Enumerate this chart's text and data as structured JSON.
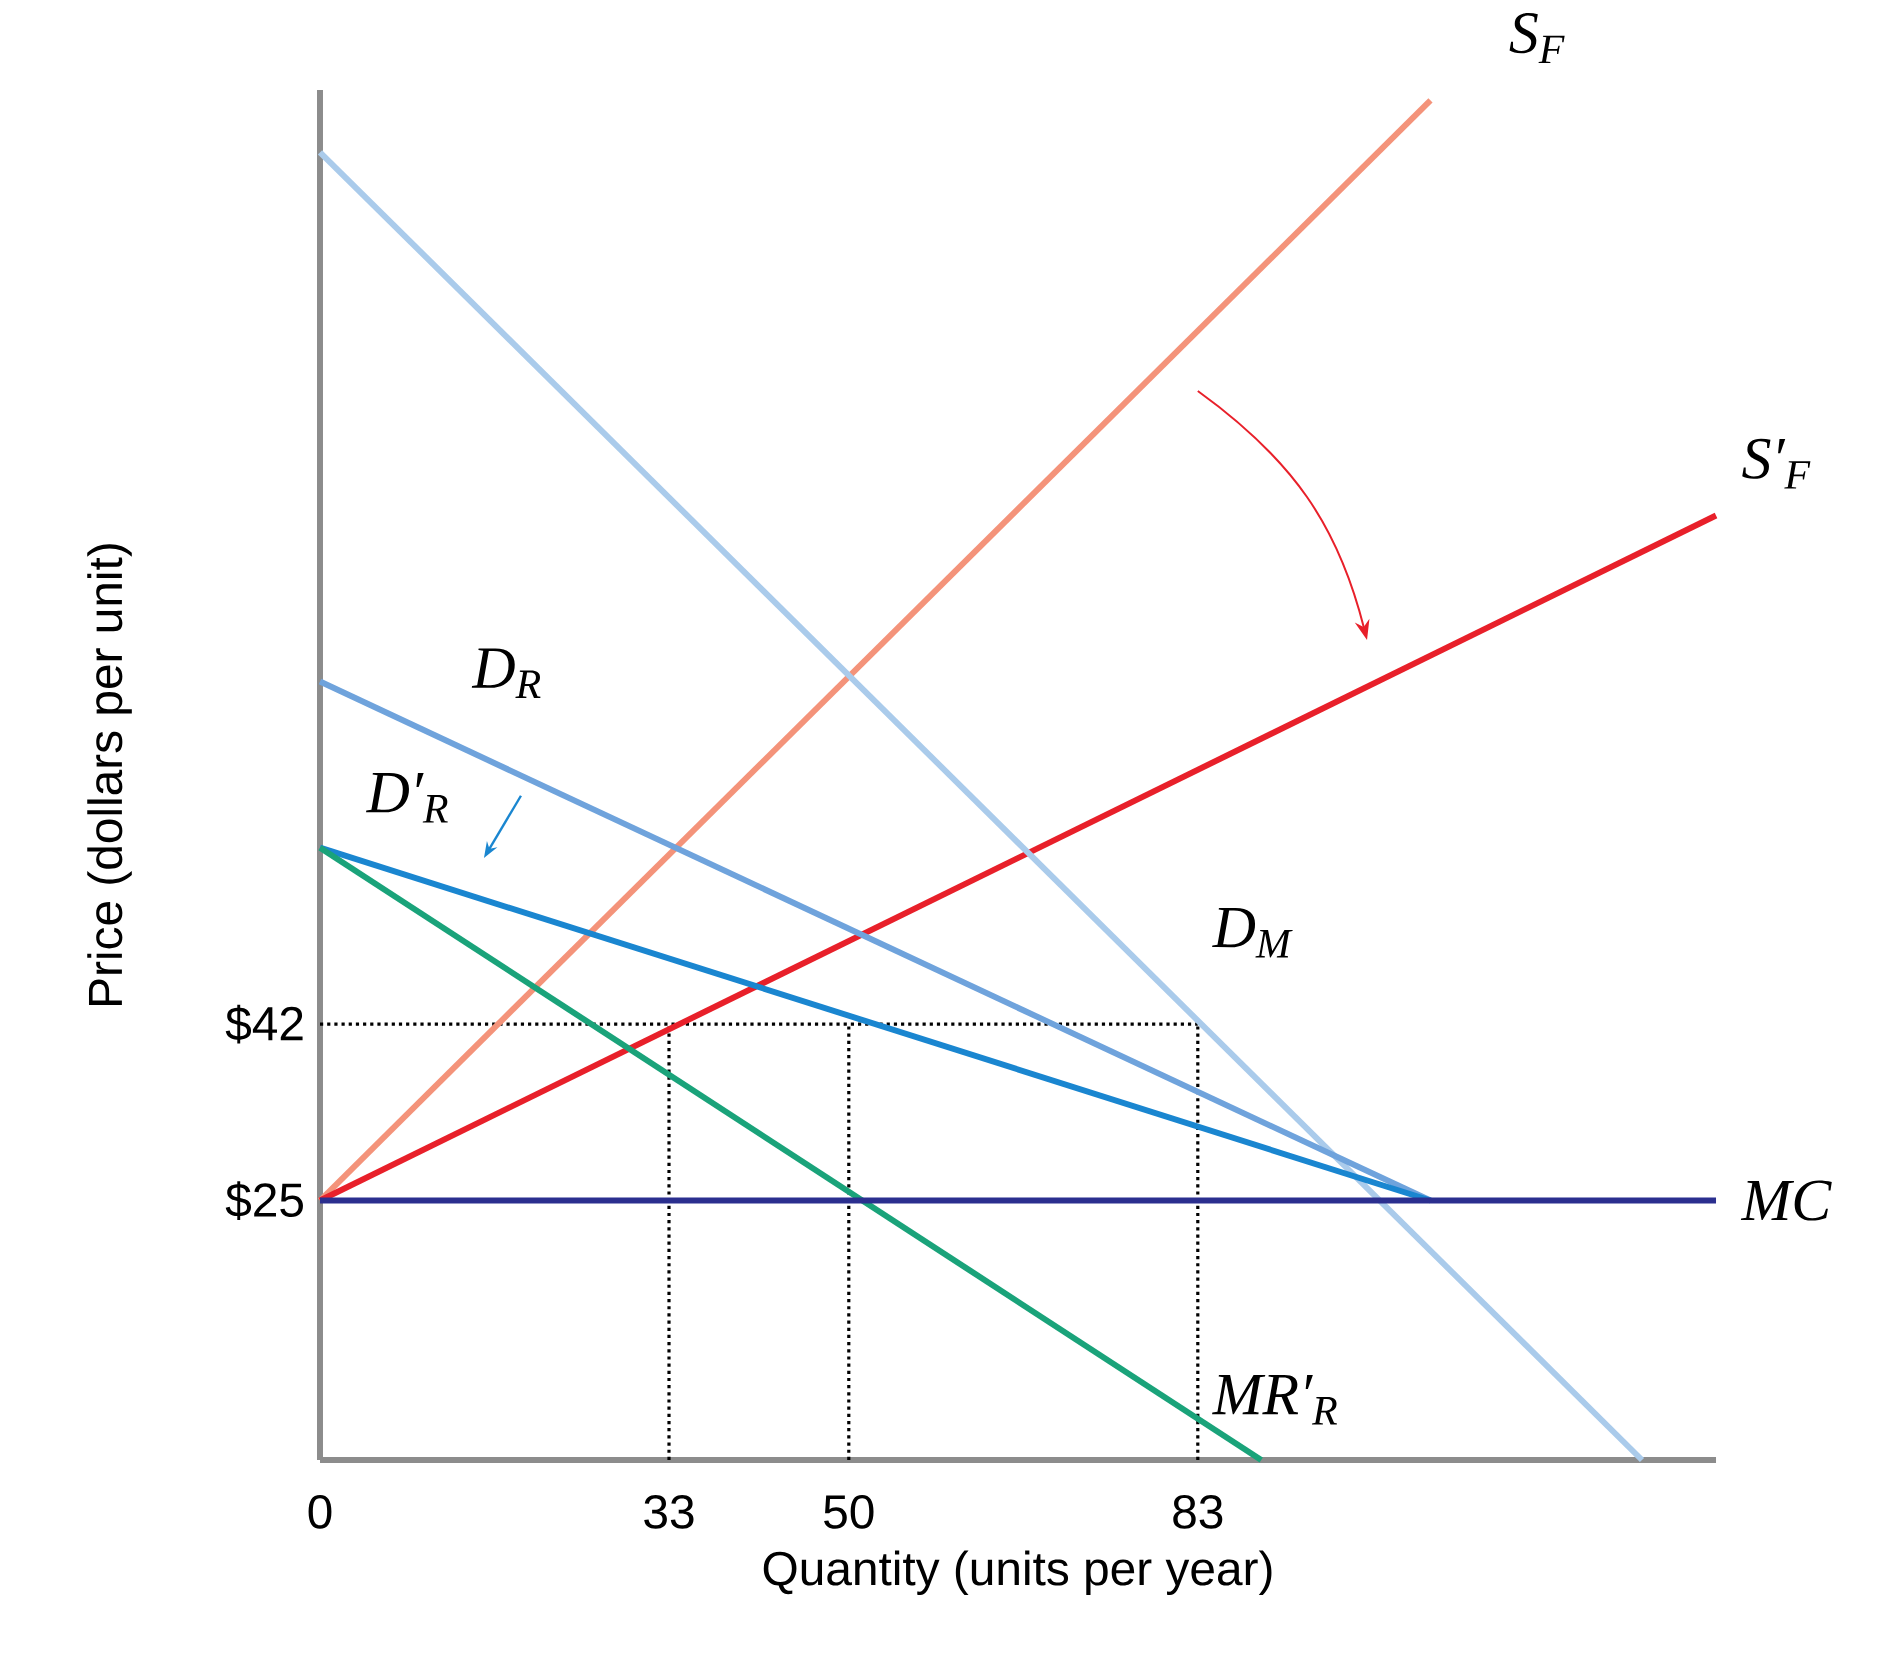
{
  "chart_data": {
    "type": "line",
    "xlabel": "Quantity (units per year)",
    "ylabel": "Price (dollars per unit)",
    "xlim": [
      0,
      132
    ],
    "ylim": [
      0,
      132
    ],
    "xticks": [
      0,
      33,
      50,
      83
    ],
    "yticks": [
      {
        "value": 25,
        "label": "$25"
      },
      {
        "value": 42,
        "label": "$42"
      }
    ],
    "series": [
      {
        "x": [
          0,
          83
        ],
        "values": [
          42,
          42
        ],
        "color": "#000000",
        "line_style": "dotted"
      },
      {
        "x": [
          33,
          33
        ],
        "values": [
          0,
          42
        ],
        "color": "#000000",
        "line_style": "dotted"
      },
      {
        "x": [
          50,
          50
        ],
        "values": [
          0,
          42
        ],
        "color": "#000000",
        "line_style": "dotted"
      },
      {
        "x": [
          83,
          83
        ],
        "values": [
          0,
          42
        ],
        "color": "#000000",
        "line_style": "dotted"
      },
      {
        "name": "S$_{F}$",
        "x": [
          0,
          105
        ],
        "values": [
          25,
          131
        ],
        "color": "#f4937a"
      },
      {
        "name": "S′$_{F}$",
        "x": [
          0,
          132
        ],
        "values": [
          25,
          91
        ],
        "color": "#e8202a"
      },
      {
        "name": "D$_{M}$",
        "x": [
          0,
          125
        ],
        "values": [
          126,
          0
        ],
        "color": "#aacbeb"
      },
      {
        "name": "D$_{R}$",
        "x": [
          0,
          105
        ],
        "values": [
          75,
          25
        ],
        "color": "#6fa3dc"
      },
      {
        "name": "D′$_{R}$",
        "x": [
          0,
          105
        ],
        "values": [
          59,
          25
        ],
        "color": "#1a86d0"
      },
      {
        "name": "MR′$_{R}$",
        "x": [
          0,
          89
        ],
        "values": [
          59,
          0
        ],
        "color": "#1aa37a"
      },
      {
        "name": "MC",
        "x": [
          0,
          132
        ],
        "values": [
          25,
          25
        ],
        "color": "#2b2f8f"
      }
    ]
  }
}
